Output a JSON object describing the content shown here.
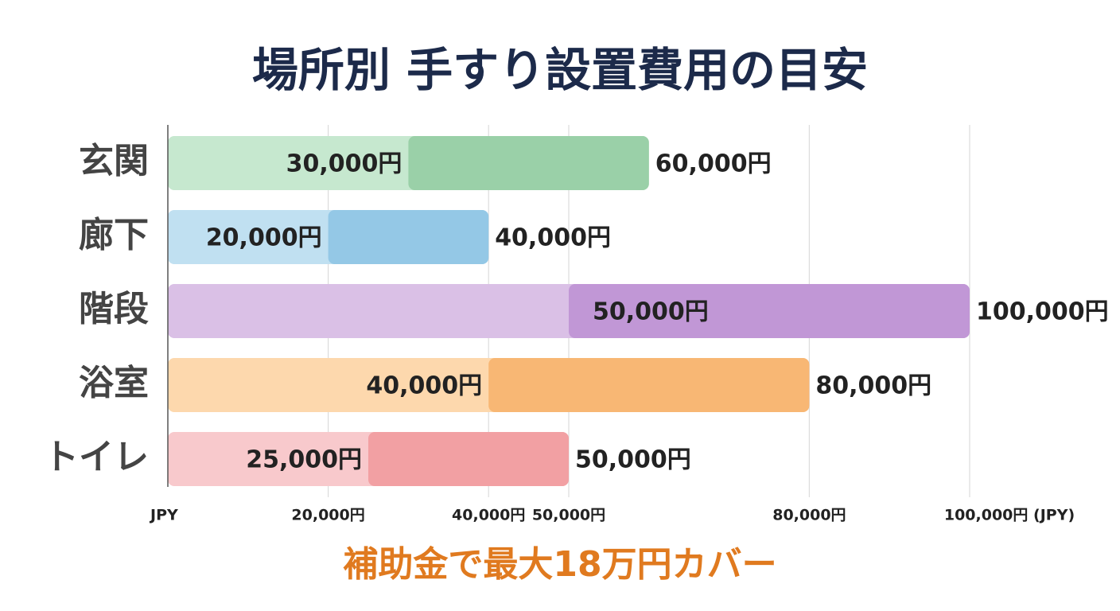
{
  "chart_data": {
    "type": "range-bar",
    "title": "場所別 手すり設置費用の目安",
    "footer": "補助金で最大18万円カバー",
    "categories": [
      "玄関",
      "廊下",
      "階段",
      "浴室",
      "トイレ"
    ],
    "series": [
      {
        "values": [
          30000,
          20000,
          50000,
          40000,
          25000
        ],
        "value_labels": [
          "30,000円",
          "20,000円",
          "50,000円",
          "40,000円",
          "25,000円"
        ],
        "colors": [
          "#c6e8cf",
          "#c0e0f1",
          "#dac0e6",
          "#fdd8ad",
          "#f8c9cc"
        ]
      },
      {
        "values": [
          60000,
          40000,
          100000,
          80000,
          50000
        ],
        "value_labels": [
          "60,000円",
          "40,000円",
          "100,000円",
          "80,000円",
          "50,000円"
        ],
        "colors": [
          "#9ad0a8",
          "#94c8e6",
          "#c197d6",
          "#f8b774",
          "#f2a0a3"
        ]
      }
    ],
    "xlim": [
      0,
      100000
    ],
    "xticks": [
      {
        "value": 0,
        "label": "JPY"
      },
      {
        "value": 20000,
        "label": "20,000円"
      },
      {
        "value": 40000,
        "label": "40,000円"
      },
      {
        "value": 50000,
        "label": "50,000円"
      },
      {
        "value": 80000,
        "label": "80,000円"
      },
      {
        "value": 100000,
        "label": "100,000円 (JPY)"
      }
    ],
    "grid": true
  }
}
